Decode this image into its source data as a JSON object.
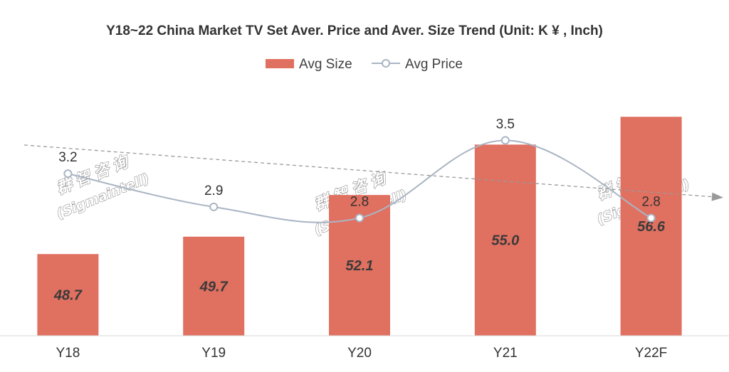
{
  "chart_data": {
    "type": "bar",
    "title": "Y18~22 China Market TV Set Aver. Price and Aver. Size Trend (Unit: K ¥ , Inch)",
    "categories": [
      "Y18",
      "Y19",
      "Y20",
      "Y21",
      "Y22F"
    ],
    "series": [
      {
        "name": "Avg Size",
        "type": "bar",
        "values": [
          48.7,
          49.7,
          52.1,
          55.0,
          56.6
        ],
        "labels": [
          "48.7",
          "49.7",
          "52.1",
          "55.0",
          "56.6"
        ],
        "color": "#e07060"
      },
      {
        "name": "Avg Price",
        "type": "line",
        "values": [
          3.2,
          2.9,
          2.8,
          3.5,
          2.8
        ],
        "labels": [
          "3.2",
          "2.9",
          "2.8",
          "3.5",
          "2.8"
        ],
        "color": "#aab4c4",
        "smooth": true
      }
    ],
    "trendline": {
      "series": "Avg Price",
      "style": "dashed",
      "color": "#9a9a9a"
    },
    "size_axis_range": [
      44,
      58
    ],
    "price_axis_range": [
      2.2,
      3.9
    ],
    "legend_position": "top",
    "grid": false
  },
  "watermark": [
    "群智咨询",
    "(Sigmaintell)"
  ],
  "colors": {
    "background": "#ffffff",
    "axis": "#d9d9d9"
  }
}
